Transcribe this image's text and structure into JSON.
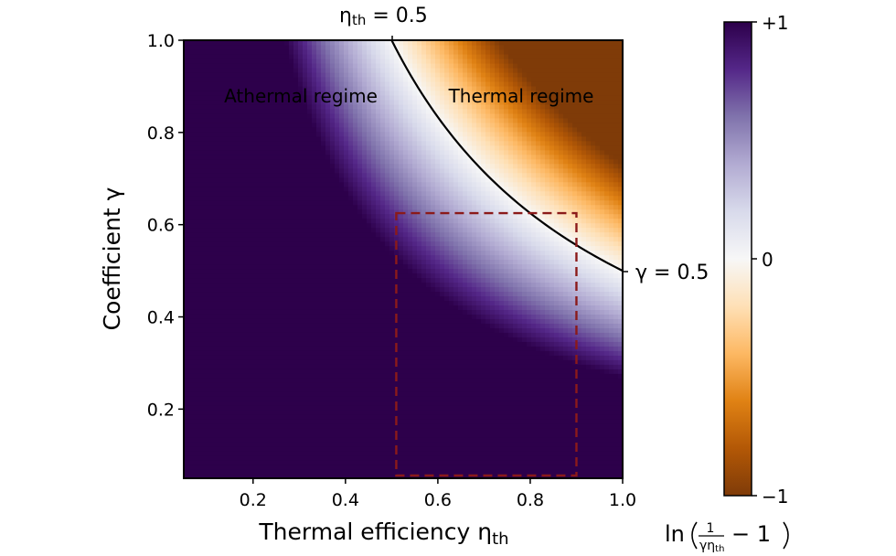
{
  "chart_data": {
    "type": "heatmap",
    "title": "",
    "xlabel": "Thermal efficiency η_th",
    "xlabel_main": "Thermal efficiency η",
    "xlabel_sub": "th",
    "ylabel": "Coefficient γ",
    "xlim": [
      0.05,
      1.0
    ],
    "ylim": [
      0.05,
      1.0
    ],
    "xticks": [
      0.2,
      0.4,
      0.6,
      0.8,
      1.0
    ],
    "xtick_labels": [
      "0.2",
      "0.4",
      "0.6",
      "0.8",
      "1.0"
    ],
    "yticks": [
      0.2,
      0.4,
      0.6,
      0.8,
      1.0
    ],
    "ytick_labels": [
      "0.2",
      "0.4",
      "0.6",
      "0.8",
      "1.0"
    ],
    "grid": false,
    "field": {
      "expression": "ln(1/(γ·η_th) − 1)",
      "colormap": "PuOr (purple = +1, white = 0, orange = −1)",
      "clip": [
        -1,
        1
      ]
    },
    "contour": {
      "level": "γ·η_th = 0.5",
      "points": [
        [
          0.5,
          1.0
        ],
        [
          0.55,
          0.909
        ],
        [
          0.6,
          0.833
        ],
        [
          0.65,
          0.769
        ],
        [
          0.7,
          0.714
        ],
        [
          0.75,
          0.667
        ],
        [
          0.8,
          0.625
        ],
        [
          0.85,
          0.588
        ],
        [
          0.9,
          0.556
        ],
        [
          0.95,
          0.526
        ],
        [
          1.0,
          0.5
        ]
      ],
      "label_top": "η_th = 0.5",
      "label_top_main": "η",
      "label_top_sub": "th",
      "label_top_rest": " = 0.5",
      "label_right": "γ = 0.5",
      "color": "#000000"
    },
    "highlight_box": {
      "x_range": [
        0.51,
        0.9
      ],
      "y_range": [
        0.05,
        0.625
      ],
      "style": "dashed",
      "color": "#8b1a1a"
    },
    "annotations": [
      {
        "text": "Athermal regime",
        "x": 0.33,
        "y": 0.88
      },
      {
        "text": "Thermal regime",
        "x": 0.82,
        "y": 0.88
      }
    ],
    "colorbar": {
      "ticks": [
        1,
        0,
        -1
      ],
      "tick_labels": [
        "+1",
        "0",
        "−1"
      ],
      "label": "ln(1/(γη_th) − 1)",
      "label_prefix": "ln",
      "label_num": "1",
      "label_den_main": "γη",
      "label_den_sub": "th",
      "label_suffix": "− 1",
      "colors_top_to_bottom": [
        "#2d004b",
        "#542788",
        "#8073ac",
        "#b2abd2",
        "#d8daeb",
        "#f7f7f7",
        "#fee0b6",
        "#fdb863",
        "#e08214",
        "#b35806",
        "#7f3b08"
      ]
    }
  }
}
